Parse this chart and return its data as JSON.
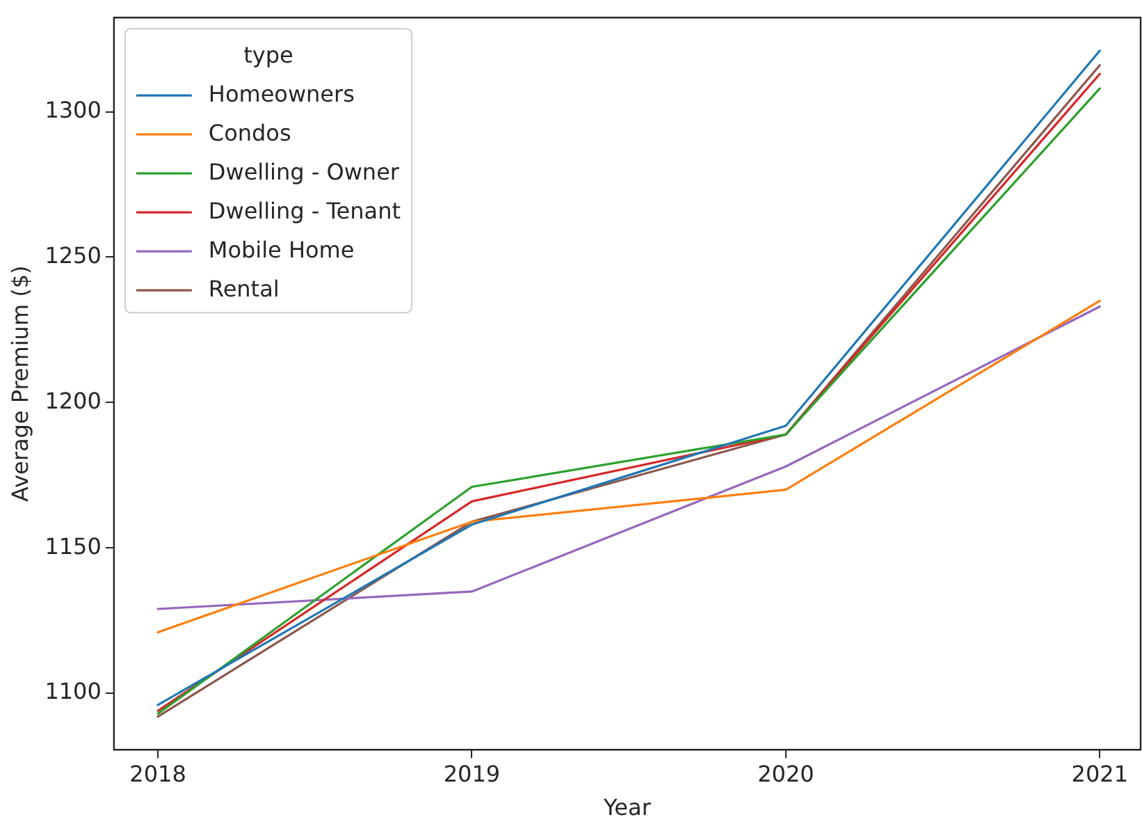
{
  "chart_data": {
    "type": "line",
    "xlabel": "Year",
    "ylabel": "Average Premium ($)",
    "legend_title": "type",
    "legend": "top left",
    "grid": false,
    "marker": "none",
    "line_style": "solid",
    "x": [
      2018,
      2019,
      2020,
      2021
    ],
    "xlim": [
      2017.86,
      2021.13
    ],
    "xticks": [
      2018,
      2019,
      2020,
      2021
    ],
    "ylim": [
      1080.6,
      1332.4
    ],
    "yticks": [
      1100,
      1150,
      1200,
      1250,
      1300
    ],
    "series": [
      {
        "name": "Homeowners",
        "color": "#1f77b4",
        "values": [
          1096,
          1158,
          1192,
          1321
        ]
      },
      {
        "name": "Condos",
        "color": "#ff7f0e",
        "values": [
          1121,
          1159,
          1170,
          1235
        ]
      },
      {
        "name": "Dwelling - Owner",
        "color": "#2ca02c",
        "values": [
          1093,
          1171,
          1189,
          1308
        ]
      },
      {
        "name": "Dwelling - Tenant",
        "color": "#d62728",
        "values": [
          1094,
          1166,
          1189,
          1313
        ]
      },
      {
        "name": "Mobile Home",
        "color": "#9467bd",
        "values": [
          1129,
          1135,
          1178,
          1233
        ]
      },
      {
        "name": "Rental",
        "color": "#8c564b",
        "values": [
          1092,
          1159,
          1189,
          1316
        ]
      }
    ]
  }
}
